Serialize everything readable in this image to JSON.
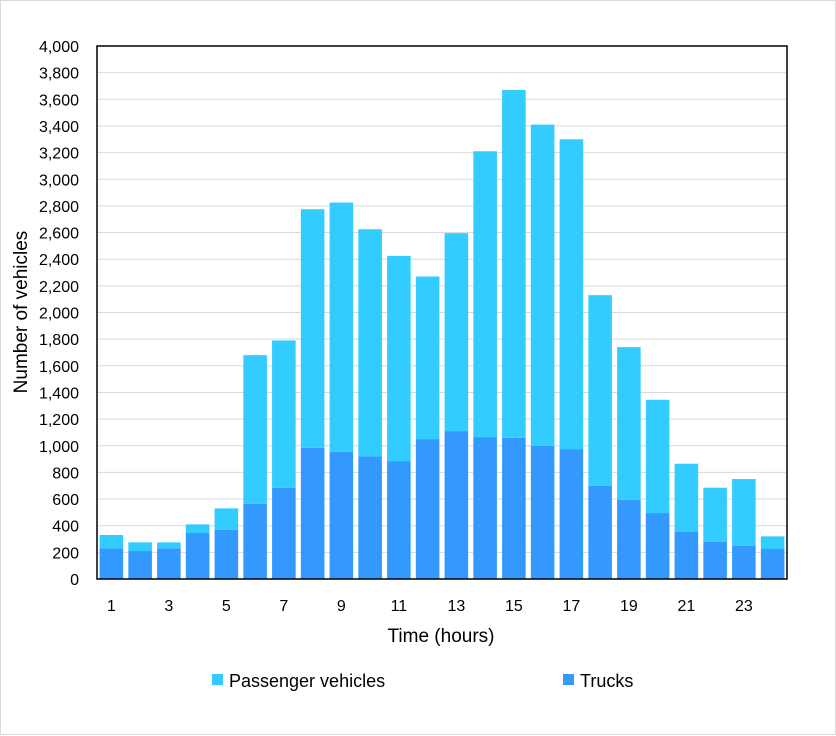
{
  "chart_data": {
    "type": "bar",
    "stacked": true,
    "x": [
      1,
      2,
      3,
      4,
      5,
      6,
      7,
      8,
      9,
      10,
      11,
      12,
      13,
      14,
      15,
      16,
      17,
      18,
      19,
      20,
      21,
      22,
      23,
      24
    ],
    "x_tick_labels": [
      "1",
      "3",
      "5",
      "7",
      "9",
      "11",
      "13",
      "15",
      "17",
      "19",
      "21",
      "23"
    ],
    "xlabel": "Time (hours)",
    "ylabel": "Number of vehicles",
    "ylim": [
      0,
      4000
    ],
    "y_tick_labels": [
      "0",
      "200",
      "400",
      "600",
      "800",
      "1,000",
      "1,200",
      "1,400",
      "1,600",
      "1,800",
      "2,000",
      "2,200",
      "2,400",
      "2,600",
      "2,800",
      "3,000",
      "3,200",
      "3,400",
      "3,600",
      "3,800",
      "4,000"
    ],
    "grid": "horizontal",
    "legend_position": "bottom",
    "series": [
      {
        "name": "Trucks",
        "color": "#3399ff",
        "values": [
          230,
          210,
          230,
          345,
          370,
          565,
          685,
          985,
          955,
          920,
          885,
          1050,
          1110,
          1065,
          1060,
          1000,
          975,
          700,
          595,
          495,
          355,
          280,
          250,
          225
        ]
      },
      {
        "name": "Passenger vehicles",
        "color": "#33ccff",
        "values": [
          100,
          65,
          45,
          65,
          160,
          1115,
          1105,
          1790,
          1870,
          1705,
          1540,
          1220,
          1485,
          2145,
          2610,
          2410,
          2325,
          1430,
          1145,
          850,
          510,
          405,
          500,
          95
        ]
      }
    ],
    "legend": [
      {
        "label": "Passenger vehicles",
        "color": "#33ccff"
      },
      {
        "label": "Trucks",
        "color": "#3399ff"
      }
    ]
  }
}
